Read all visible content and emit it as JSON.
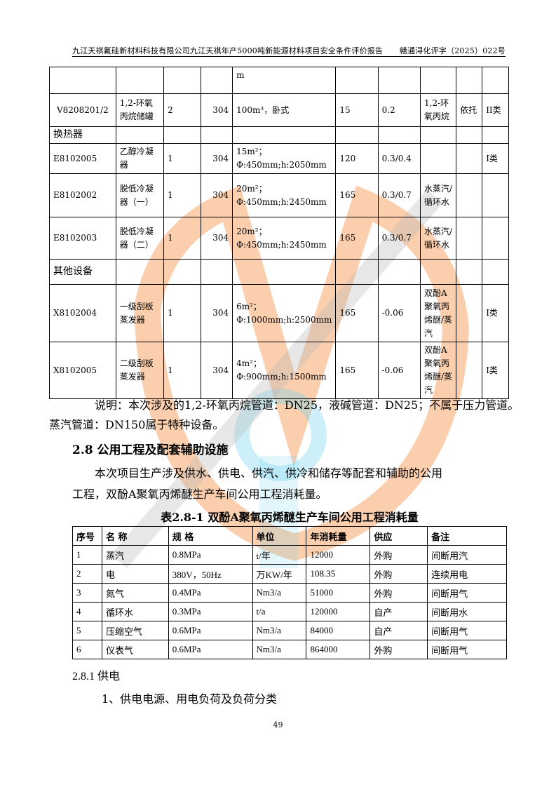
{
  "header": {
    "title": "九江天祺氟硅新材料科技有限公司九江天祺年产5000吨新能源材料项目安全条件评价报告",
    "doc_no": "赣通浔化评字（2025）022号"
  },
  "equipment_table": {
    "rows": [
      {
        "type": "item",
        "cells": [
          "",
          "",
          "",
          "",
          "m",
          "",
          "",
          "",
          "",
          ""
        ]
      },
      {
        "type": "item",
        "cells": [
          "V8208201/2",
          "1,2-环氧丙烷储罐",
          "2",
          "304",
          "100m³，卧式",
          "15",
          "0.2",
          "1,2-环氧丙烷",
          "依托",
          "II类"
        ]
      },
      {
        "type": "section",
        "label": "换热器"
      },
      {
        "type": "item",
        "cells": [
          "E8102005",
          "乙醇冷凝器",
          "1",
          "304",
          "15m²；Φ:450mm;h:2050mm",
          "120",
          "0.3/0.4",
          "",
          "",
          "I类"
        ]
      },
      {
        "type": "item",
        "cells": [
          "E8102002",
          "脱低冷凝器（一）",
          "1",
          "304",
          "20m²；Φ:450mm;h:2450mm",
          "165",
          "0.3/0.7",
          "水蒸汽/循环水",
          "",
          ""
        ]
      },
      {
        "type": "item",
        "cells": [
          "E8102003",
          "脱低冷凝器（二）",
          "1",
          "304",
          "20m²；Φ:450mm;h:2450mm",
          "165",
          "0.3/0.7",
          "水蒸汽/循环水",
          "",
          ""
        ]
      },
      {
        "type": "section",
        "label": "其他设备"
      },
      {
        "type": "item",
        "cells": [
          "X8102004",
          "一级刮板蒸发器",
          "1",
          "304",
          "6m²；Φ:1000mm;h:2500mm",
          "165",
          "-0.06",
          "双酚A聚氧丙烯醚/蒸汽",
          "",
          "I类"
        ]
      },
      {
        "type": "item",
        "cells": [
          "X8102005",
          "二级刮板蒸发器",
          "1",
          "304",
          "4m²；Φ:900mm;h:1500mm",
          "165",
          "-0.06",
          "双酚A聚氧丙烯醚/蒸汽",
          "",
          "I类"
        ]
      }
    ]
  },
  "note": {
    "line1": "说明：本次涉及的1,2-环氧丙烷管道：DN25，液碱管道：DN25；不属于压力管道。",
    "line2": "蒸汽管道：DN150属于特种设备。"
  },
  "section": {
    "heading": "2.8 公用工程及配套辅助设施",
    "para1": "本次项目生产涉及供水、供电、供汽、供冷和储存等配套和辅助的公用",
    "para2": "工程，双酚A聚氧丙烯醚生产车间公用工程消耗量。"
  },
  "utility_table": {
    "caption": "表2.8-1 双酚A聚氧丙烯醚生产车间公用工程消耗量",
    "headers": [
      "序号",
      "名  称",
      "规    格",
      "单位",
      "年消耗量",
      "供应",
      "备注"
    ],
    "rows": [
      [
        "1",
        "蒸汽",
        "0.8MPa",
        "t/年",
        "12000",
        "外购",
        "间断用汽"
      ],
      [
        "2",
        "电",
        "380V，50Hz",
        "万KW/年",
        "108.35",
        "外购",
        "连续用电"
      ],
      [
        "3",
        "氮气",
        "0.4MPa",
        "Nm3/a",
        "51000",
        "外购",
        "间断用气"
      ],
      [
        "4",
        "循环水",
        "0.3MPa",
        "t/a",
        "120000",
        "自产",
        "间断用水"
      ],
      [
        "5",
        "压缩空气",
        "0.6MPa",
        "Nm3/a",
        "84000",
        "自产",
        "间断用气"
      ],
      [
        "6",
        "仪表气",
        "0.6MPa",
        "Nm3/a",
        "864000",
        "外购",
        "间断用气"
      ]
    ]
  },
  "subsection": {
    "heading": "2.8.1 供电",
    "item1": "1、供电电源、用电负荷及负荷分类"
  },
  "page_number": "49",
  "colors": {
    "watermark_orange": "#f7a86a",
    "watermark_blue": "#6fd0f0",
    "watermark_gray": "#bbbbbb"
  }
}
